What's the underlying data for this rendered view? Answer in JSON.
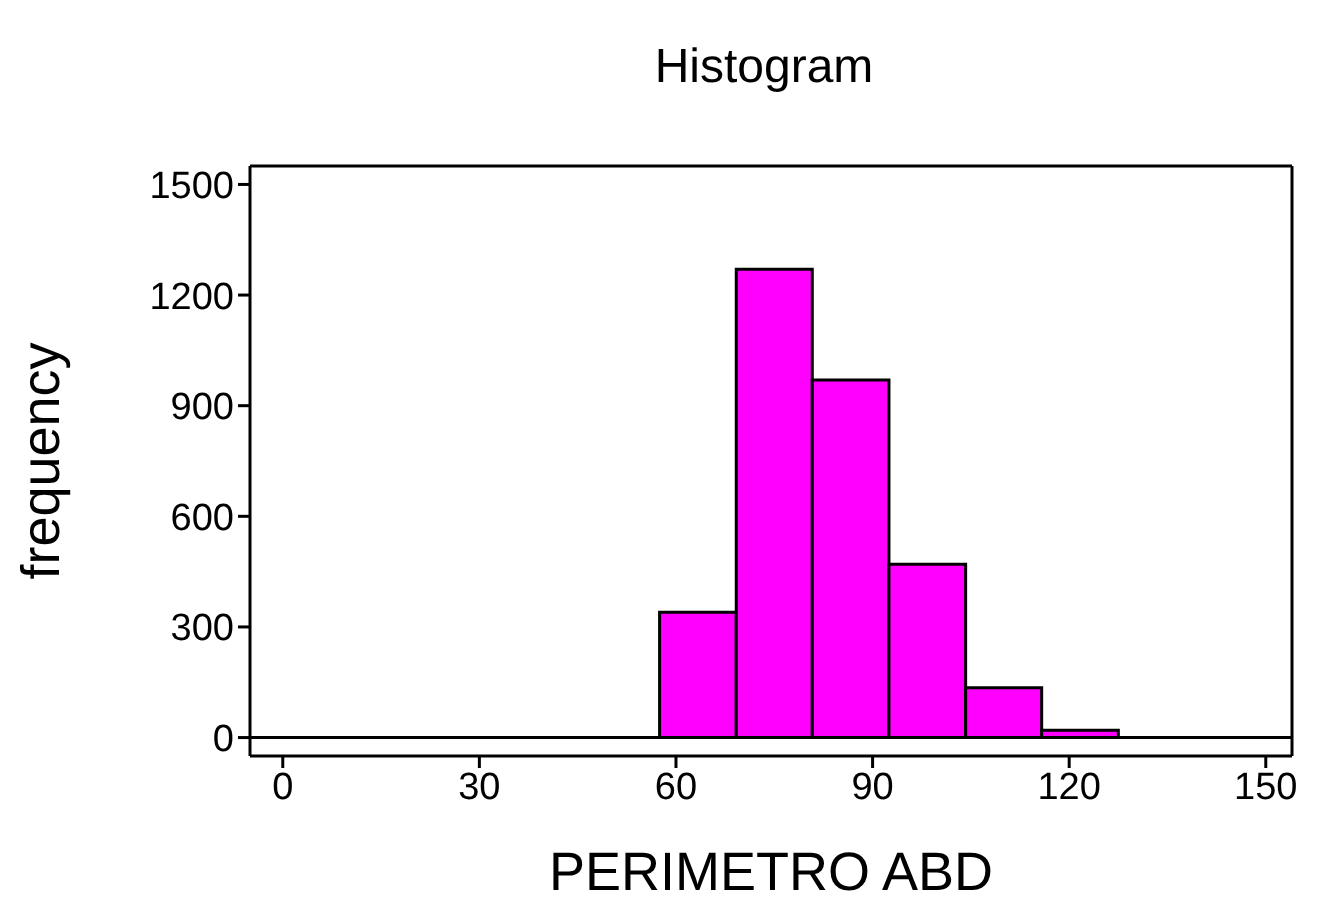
{
  "chart_data": {
    "type": "histogram",
    "title": "Histogram",
    "xlabel": "PERIMETRO ABD",
    "ylabel": "frequency",
    "bins": [
      57.5,
      69.2,
      80.8,
      92.5,
      104.2,
      115.8,
      127.5
    ],
    "values": [
      340,
      1270,
      970,
      470,
      135,
      20
    ],
    "color": "#ff00ff",
    "xlim": [
      -5,
      154
    ],
    "xticks": [
      0,
      30,
      60,
      90,
      120,
      150
    ],
    "ylim": [
      -50,
      1550
    ],
    "yticks": [
      0,
      300,
      600,
      900,
      1200,
      1500
    ],
    "ref_lines": [
      {
        "axis": "y",
        "value": 0,
        "color": "#000000"
      }
    ]
  }
}
